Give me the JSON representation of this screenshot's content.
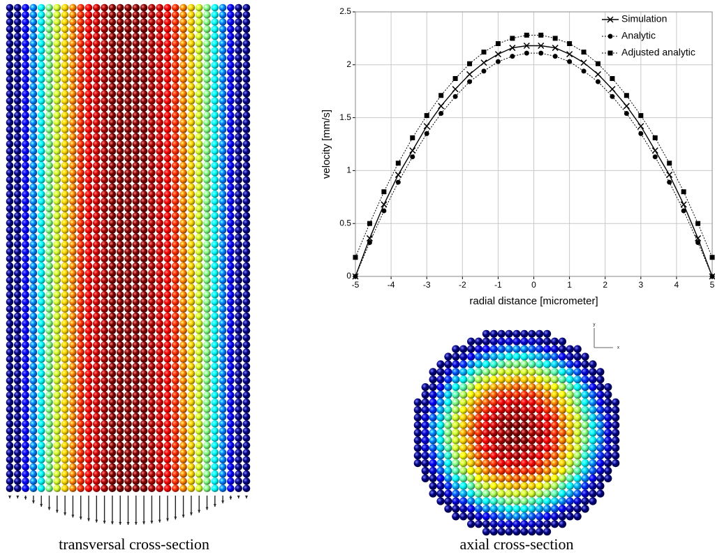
{
  "chart_data": {
    "type": "line",
    "xlabel": "radial distance [micrometer]",
    "ylabel": "velocity [mm/s]",
    "x": [
      -5,
      -4.6,
      -4.2,
      -3.8,
      -3.4,
      -3,
      -2.6,
      -2.2,
      -1.8,
      -1.4,
      -1,
      -0.6,
      -0.2,
      0.2,
      0.6,
      1,
      1.4,
      1.8,
      2.2,
      2.6,
      3,
      3.4,
      3.8,
      4.2,
      4.6,
      5
    ],
    "series": [
      {
        "name": "Simulation",
        "color": "#000000",
        "marker": "x",
        "linestyle": "solid",
        "values": [
          0,
          0.36,
          0.68,
          0.96,
          1.19,
          1.42,
          1.61,
          1.77,
          1.91,
          2.02,
          2.1,
          2.16,
          2.18,
          2.18,
          2.16,
          2.1,
          2.02,
          1.91,
          1.77,
          1.61,
          1.42,
          1.19,
          0.96,
          0.68,
          0.36,
          0
        ]
      },
      {
        "name": "Analytic",
        "color": "#000000",
        "marker": "circle",
        "linestyle": "dotted",
        "values": [
          0,
          0.32,
          0.62,
          0.89,
          1.13,
          1.35,
          1.54,
          1.7,
          1.84,
          1.94,
          2.03,
          2.08,
          2.11,
          2.11,
          2.08,
          2.03,
          1.94,
          1.84,
          1.7,
          1.54,
          1.35,
          1.13,
          0.89,
          0.62,
          0.32,
          0
        ]
      },
      {
        "name": "Adjusted analytic",
        "color": "#000000",
        "marker": "square",
        "linestyle": "dotted",
        "values": [
          0.18,
          0.5,
          0.8,
          1.07,
          1.31,
          1.52,
          1.71,
          1.87,
          2.01,
          2.12,
          2.2,
          2.25,
          2.28,
          2.28,
          2.25,
          2.2,
          2.12,
          2.01,
          1.87,
          1.71,
          1.52,
          1.31,
          1.07,
          0.8,
          0.5,
          0.18
        ]
      }
    ],
    "xlim": [
      -5,
      5
    ],
    "xticks": [
      -5,
      -4,
      -3,
      -2,
      -1,
      0,
      1,
      2,
      3,
      4,
      5
    ],
    "ylim": [
      0,
      2.5
    ],
    "yticks": [
      0,
      0.5,
      1,
      1.5,
      2,
      2.5
    ],
    "grid": true,
    "legend": "upper right"
  },
  "captions": {
    "left": "transversal cross-section",
    "right": "axial cross-section"
  },
  "triad": {
    "x": "x",
    "y": "y"
  }
}
